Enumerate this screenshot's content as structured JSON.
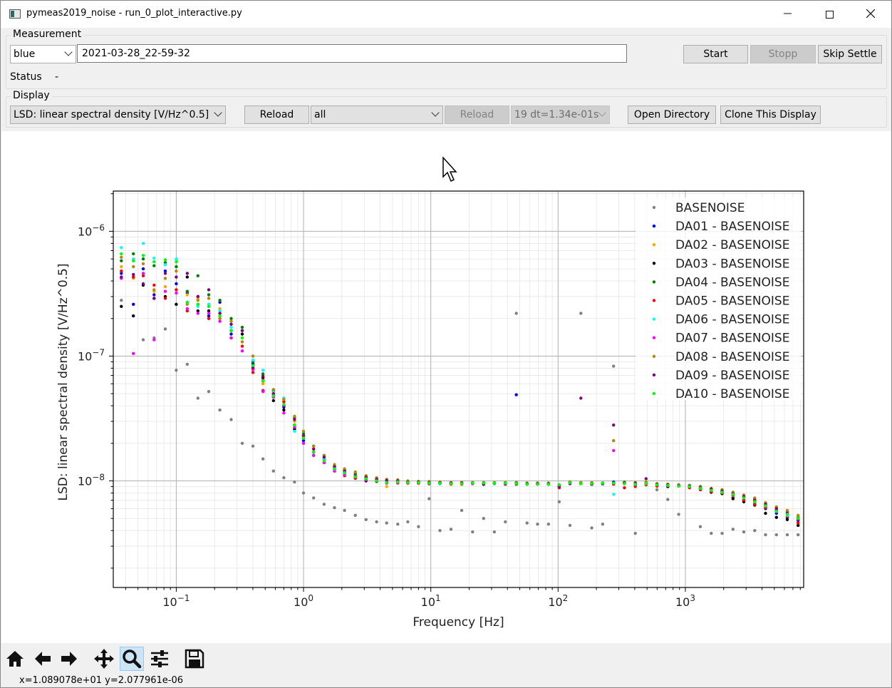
{
  "window": {
    "title": "pymeas2019_noise - run_0_plot_interactive.py"
  },
  "measurement": {
    "group_title": "Measurement",
    "color_select": "blue",
    "directory_value": "2021-03-28_22-59-32",
    "start_label": "Start",
    "stopp_label": "Stopp",
    "skip_settle_label": "Skip Settle",
    "status_label": "Status",
    "status_value": "-"
  },
  "display": {
    "group_title": "Display",
    "mode_select": "LSD: linear spectral density [V/Hz^0.5]",
    "reload_label": "Reload",
    "filter_select": "all",
    "reload2_label": "Reload",
    "dt_select": "19 dt=1.34e-01s",
    "open_directory_label": "Open Directory",
    "clone_label": "Clone This Display"
  },
  "toolbar": {
    "coords": "x=1.089078e+01  y=2.077961e-06",
    "tools": [
      "home-icon",
      "back-arrow-icon",
      "forward-arrow-icon",
      "pan-icon",
      "zoom-icon",
      "configure-subplots-icon",
      "save-icon"
    ]
  },
  "chart_data": {
    "type": "scatter",
    "xscale": "log",
    "yscale": "log",
    "xlabel": "Frequency [Hz]",
    "ylabel": "LSD: linear spectral density [V/Hz^0.5]",
    "xlim": [
      0.032,
      8500
    ],
    "ylim": [
      1.4e-09,
      2.1e-06
    ],
    "grid": true,
    "legend_position": "top-right",
    "x_tick_labels": [
      "10^-1",
      "10^0",
      "10^1",
      "10^2",
      "10^3"
    ],
    "y_tick_labels": [
      "10^-8",
      "10^-7",
      "10^-6"
    ],
    "x": [
      0.037,
      0.046,
      0.055,
      0.067,
      0.082,
      0.1,
      0.122,
      0.148,
      0.18,
      0.22,
      0.27,
      0.33,
      0.4,
      0.48,
      0.58,
      0.7,
      0.85,
      1.0,
      1.2,
      1.45,
      1.75,
      2.1,
      2.55,
      3.1,
      3.75,
      4.5,
      5.5,
      6.6,
      8.0,
      9.7,
      11.8,
      14.4,
      17.5,
      21.3,
      26,
      31.6,
      38.5,
      47,
      57,
      69,
      84,
      102,
      124,
      151,
      184,
      224,
      273,
      332,
      404,
      491,
      598,
      728,
      886,
      1078,
      1312,
      1597,
      1944,
      2366,
      2880,
      3505,
      4266,
      5192,
      6319,
      7690
    ],
    "series": [
      {
        "name": "BASENOISE",
        "color": "#808080",
        "values": [
          2.8e-07,
          null,
          1.35e-07,
          1.4e-07,
          1.65e-07,
          7.7e-08,
          8.6e-08,
          4.6e-08,
          5.2e-08,
          3.7e-08,
          3.1e-08,
          2e-08,
          1.9e-08,
          1.5e-08,
          1.2e-08,
          1.06e-08,
          9.8e-09,
          8e-09,
          7.3e-09,
          6.5e-09,
          6.1e-09,
          5.8e-09,
          5.3e-09,
          4.9e-09,
          4.7e-09,
          4.6e-09,
          4.5e-09,
          4.7e-09,
          4.3e-09,
          7.2e-09,
          4e-09,
          4.1e-09,
          5.8e-09,
          3.9e-09,
          5e-09,
          3.9e-09,
          4.7e-09,
          2.2e-07,
          4.6e-09,
          4.5e-09,
          4.5e-09,
          6.8e-09,
          4.4e-09,
          2.2e-07,
          4.2e-09,
          4.5e-09,
          8.3e-08,
          null,
          3.8e-09,
          null,
          8.5e-09,
          7.1e-09,
          5.4e-09,
          null,
          4.3e-09,
          3.8e-09,
          3.8e-09,
          4.1e-09,
          3.9e-09,
          4e-09,
          3.7e-09,
          3.7e-09,
          3.7e-09,
          3.7e-09
        ]
      },
      {
        "name": "DA01 - BASENOISE",
        "color": "#0000ff",
        "values": [
          4.6e-07,
          2.6e-07,
          5e-07,
          3.1e-07,
          4.8e-07,
          3.8e-07,
          3.2e-07,
          3e-07,
          2.1e-07,
          2.7e-07,
          1.5e-07,
          1.6e-07,
          8.7e-08,
          6.4e-08,
          4.7e-08,
          3.9e-08,
          2.8e-08,
          2.1e-08,
          1.7e-08,
          1.5e-08,
          1.3e-08,
          1.18e-08,
          1.1e-08,
          1.07e-08,
          1.03e-08,
          9.8e-09,
          9.7e-09,
          9.8e-09,
          9.7e-09,
          9.6e-09,
          9.6e-09,
          9.5e-09,
          9.5e-09,
          9.6e-09,
          9.5e-09,
          9.5e-09,
          9.6e-09,
          4.9e-08,
          9.5e-09,
          9.5e-09,
          9.5e-09,
          9.1e-09,
          9.8e-09,
          9.6e-09,
          9.4e-09,
          9.6e-09,
          9.8e-09,
          9.7e-09,
          9.6e-09,
          9.5e-09,
          9.3e-09,
          9.2e-09,
          9.1e-09,
          8.9e-09,
          8.6e-09,
          8.3e-09,
          8e-09,
          7.4e-09,
          6.9e-09,
          6.6e-09,
          6e-09,
          5.5e-09,
          5.1e-09,
          4.8e-09
        ]
      },
      {
        "name": "DA02 - BASENOISE",
        "color": "#ffa500",
        "values": [
          5.2e-07,
          4.2e-07,
          4.6e-07,
          3.3e-07,
          3.6e-07,
          4.3e-07,
          3.1e-07,
          2.9e-07,
          2.6e-07,
          2.4e-07,
          1.4e-07,
          1.3e-07,
          1e-07,
          6e-08,
          5e-08,
          4.4e-08,
          3e-08,
          2.3e-08,
          1.8e-08,
          1.45e-08,
          1.25e-08,
          1.2e-08,
          1.14e-08,
          1.1e-08,
          1.04e-08,
          9e-09,
          9.9e-09,
          9.8e-09,
          9.8e-09,
          9.7e-09,
          9.6e-09,
          9.6e-09,
          9.7e-09,
          9.6e-09,
          9.6e-09,
          9.6e-09,
          9.6e-09,
          9.6e-09,
          9.5e-09,
          9.6e-09,
          9.5e-09,
          9.2e-09,
          9.7e-09,
          9.6e-09,
          9.5e-09,
          9.6e-09,
          2.1e-08,
          9.6e-09,
          9.6e-09,
          9.8e-09,
          9.4e-09,
          9.3e-09,
          9.2e-09,
          9e-09,
          8.7e-09,
          8.3e-09,
          8.1e-09,
          7.6e-09,
          7.2e-09,
          6.7e-09,
          6.2e-09,
          5.7e-09,
          5.3e-09,
          4.9e-09
        ]
      },
      {
        "name": "DA03 - BASENOISE",
        "color": "#000000",
        "values": [
          2.5e-07,
          2.1e-07,
          3.7e-07,
          2.9e-07,
          3e-07,
          2.6e-07,
          4.3e-07,
          2.3e-07,
          2.3e-07,
          2e-07,
          1.6e-07,
          1.5e-07,
          8e-08,
          6.7e-08,
          4.4e-08,
          3.7e-08,
          2.6e-08,
          2.3e-08,
          1.6e-08,
          1.5e-08,
          1.25e-08,
          1.15e-08,
          1.05e-08,
          1e-08,
          9.9e-09,
          9.7e-09,
          9.7e-09,
          9.6e-09,
          9.6e-09,
          9.5e-09,
          9.5e-09,
          9.5e-09,
          9.5e-09,
          9.5e-09,
          9.4e-09,
          9.5e-09,
          9.4e-09,
          9.4e-09,
          9.4e-09,
          9.4e-09,
          9.4e-09,
          9e-09,
          9.5e-09,
          9.5e-09,
          9.4e-09,
          9.6e-09,
          9.5e-09,
          9.5e-09,
          9.3e-09,
          9.4e-09,
          9.1e-09,
          9e-09,
          9.1e-09,
          8.9e-09,
          8.6e-09,
          8.1e-09,
          7.9e-09,
          7.2e-09,
          6.8e-09,
          6.4e-09,
          5.5e-09,
          5.1e-09,
          4.9e-09,
          4.4e-09
        ]
      },
      {
        "name": "DA04 - BASENOISE",
        "color": "#008000",
        "values": [
          5.8e-07,
          6.6e-07,
          6e-07,
          5.3e-07,
          5.6e-07,
          5.2e-07,
          3.3e-07,
          4.4e-07,
          3.1e-07,
          2.8e-07,
          2e-07,
          1.7e-07,
          9e-08,
          7.2e-08,
          5.3e-08,
          4.6e-08,
          3.2e-08,
          2.4e-08,
          1.9e-08,
          1.6e-08,
          1.3e-08,
          1.22e-08,
          1.14e-08,
          1.08e-08,
          1.05e-08,
          1e-08,
          1e-08,
          9.9e-09,
          9.9e-09,
          9.8e-09,
          9.7e-09,
          9.7e-09,
          9.7e-09,
          9.7e-09,
          9.7e-09,
          9.6e-09,
          9.7e-09,
          9.7e-09,
          9.6e-09,
          9.6e-09,
          9.6e-09,
          9.3e-09,
          9.8e-09,
          9.7e-09,
          9.6e-09,
          9.6e-09,
          9.6e-09,
          9.8e-09,
          9.6e-09,
          9.7e-09,
          9.5e-09,
          9.4e-09,
          9.3e-09,
          9.2e-09,
          9e-09,
          8.7e-09,
          8.5e-09,
          8.1e-09,
          7.7e-09,
          7.2e-09,
          6.6e-09,
          6.1e-09,
          5.6e-09,
          5.1e-09
        ]
      },
      {
        "name": "DA05 - BASENOISE",
        "color": "#ff0000",
        "values": [
          4.8e-07,
          4.3e-07,
          4.4e-07,
          3.7e-07,
          2.9e-07,
          3.4e-07,
          2.3e-07,
          2.6e-07,
          2e-07,
          2.2e-07,
          1.4e-07,
          1.2e-07,
          7.4e-08,
          5.3e-08,
          4.9e-08,
          4.3e-08,
          2.8e-08,
          2.2e-08,
          1.7e-08,
          1.4e-08,
          1.2e-08,
          1.1e-08,
          1.05e-08,
          1.03e-08,
          1.02e-08,
          9.6e-09,
          9.6e-09,
          9.6e-09,
          9.6e-09,
          9.6e-09,
          9.5e-09,
          9.4e-09,
          9.4e-09,
          9.6e-09,
          9.6e-09,
          9.5e-09,
          9.5e-09,
          9.5e-09,
          9.4e-09,
          9.4e-09,
          9.4e-09,
          8.8e-09,
          9.8e-09,
          9.5e-09,
          9.5e-09,
          9.5e-09,
          9.4e-09,
          8.8e-09,
          9e-09,
          9.3e-09,
          9.1e-09,
          9.2e-09,
          9.1e-09,
          8.8e-09,
          8.5e-09,
          8.2e-09,
          8e-09,
          7.7e-09,
          7e-09,
          6.5e-09,
          6.1e-09,
          5.7e-09,
          5.2e-09,
          4.6e-09
        ]
      },
      {
        "name": "DA06 - BASENOISE",
        "color": "#00ffff",
        "values": [
          7.4e-07,
          6e-07,
          8e-07,
          6.1e-07,
          5.4e-07,
          6e-07,
          2.7e-07,
          2.5e-07,
          2.6e-07,
          2.3e-07,
          1.7e-07,
          1.6e-07,
          9.3e-08,
          7.7e-08,
          5.1e-08,
          4.6e-08,
          2.5e-08,
          2e-08,
          1.6e-08,
          1.5e-08,
          1.3e-08,
          1.2e-08,
          1.1e-08,
          1.07e-08,
          1.04e-08,
          1e-08,
          1e-08,
          9.8e-09,
          9.8e-09,
          9.6e-09,
          9.5e-09,
          9.6e-09,
          9.6e-09,
          9.5e-09,
          9.6e-09,
          9.5e-09,
          9.5e-09,
          9.5e-09,
          9.4e-09,
          9.5e-09,
          9.5e-09,
          9e-09,
          9.6e-09,
          9.6e-09,
          9.6e-09,
          9.4e-09,
          7.8e-09,
          9.5e-09,
          9.4e-09,
          9.5e-09,
          9.4e-09,
          9.3e-09,
          9.1e-09,
          9e-09,
          8.8e-09,
          8.5e-09,
          8.3e-09,
          7.9e-09,
          7.4e-09,
          6.9e-09,
          6.4e-09,
          5.9e-09,
          5.3e-09,
          4.9e-09
        ]
      },
      {
        "name": "DA07 - BASENOISE",
        "color": "#ff00ff",
        "values": [
          4.2e-07,
          1.05e-07,
          4.6e-07,
          1.35e-07,
          3.3e-07,
          3.2e-07,
          2.4e-07,
          2.2e-07,
          2.2e-07,
          1.9e-07,
          1.4e-07,
          1.1e-07,
          7.8e-08,
          5.2e-08,
          4.7e-08,
          3.5e-08,
          2.7e-08,
          2e-08,
          1.6e-08,
          1.4e-08,
          1.2e-08,
          1.12e-08,
          1.08e-08,
          1.02e-08,
          1e-08,
          9.7e-09,
          9.7e-09,
          9.7e-09,
          9.7e-09,
          9.6e-09,
          9.6e-09,
          9.6e-09,
          9.6e-09,
          9.5e-09,
          9.6e-09,
          9.6e-09,
          9.5e-09,
          9.5e-09,
          9.4e-09,
          9.4e-09,
          9.5e-09,
          9.1e-09,
          9.6e-09,
          9.6e-09,
          9.6e-09,
          9.5e-09,
          1.75e-08,
          9.6e-09,
          9.5e-09,
          9.5e-09,
          9.4e-09,
          9.3e-09,
          9.2e-09,
          9.1e-09,
          8.8e-09,
          8.5e-09,
          8.2e-09,
          7.8e-09,
          7.4e-09,
          6.9e-09,
          6.3e-09,
          5.8e-09,
          5.7e-09,
          5e-09
        ]
      },
      {
        "name": "DA08 - BASENOISE",
        "color": "#b8860b",
        "values": [
          6.2e-07,
          5.2e-07,
          5.5e-07,
          3.4e-07,
          4.2e-07,
          4.8e-07,
          2.6e-07,
          2.8e-07,
          2.9e-07,
          2e-07,
          1.9e-07,
          1.3e-07,
          1e-07,
          6.4e-08,
          5.4e-08,
          4.5e-08,
          3.3e-08,
          2.5e-08,
          1.9e-08,
          1.6e-08,
          1.35e-08,
          1.25e-08,
          1.18e-08,
          1.1e-08,
          1.06e-08,
          1.03e-08,
          1.02e-08,
          1e-08,
          9.9e-09,
          9.9e-09,
          9.8e-09,
          9.7e-09,
          9.7e-09,
          9.7e-09,
          9.7e-09,
          9.7e-09,
          9.7e-09,
          9.6e-09,
          9.6e-09,
          9.6e-09,
          9.6e-09,
          9.2e-09,
          9.8e-09,
          9.7e-09,
          9.7e-09,
          9.6e-09,
          2.1e-08,
          9.7e-09,
          9.7e-09,
          9.8e-09,
          9.5e-09,
          9.4e-09,
          9.3e-09,
          9.2e-09,
          8.9e-09,
          8.7e-09,
          8.5e-09,
          8.1e-09,
          7.7e-09,
          7.3e-09,
          6.7e-09,
          6.2e-09,
          5.8e-09,
          5.3e-09
        ]
      },
      {
        "name": "DA09 - BASENOISE",
        "color": "#800080",
        "values": [
          4.3e-07,
          4.5e-07,
          3.8e-07,
          2.9e-07,
          4.6e-07,
          4.3e-07,
          4.6e-07,
          3e-07,
          3.4e-07,
          2.2e-07,
          1.8e-07,
          1.6e-07,
          8.1e-08,
          6.9e-08,
          5e-08,
          4e-08,
          3.1e-08,
          2.3e-08,
          1.8e-08,
          1.55e-08,
          1.3e-08,
          1.2e-08,
          1.1e-08,
          1.07e-08,
          1.03e-08,
          1.01e-08,
          1e-08,
          9.8e-09,
          9.8e-09,
          9.7e-09,
          9.7e-09,
          9.6e-09,
          9.6e-09,
          9.6e-09,
          9.6e-09,
          9.6e-09,
          9.6e-09,
          9.5e-09,
          9.5e-09,
          9.5e-09,
          9.5e-09,
          9e-09,
          9.7e-09,
          4.6e-08,
          9.5e-09,
          9.5e-09,
          2.8e-08,
          9.6e-09,
          9.6e-09,
          1.04e-08,
          9.4e-09,
          9.3e-09,
          9.2e-09,
          9.1e-09,
          8.8e-09,
          8.6e-09,
          8.3e-09,
          7.9e-09,
          7.5e-09,
          7e-09,
          6.5e-09,
          6e-09,
          5.5e-09,
          4.9e-09
        ]
      },
      {
        "name": "DA10 - BASENOISE",
        "color": "#00ff00",
        "values": [
          6.6e-07,
          5.8e-07,
          6.4e-07,
          5.7e-07,
          5.9e-07,
          5.7e-07,
          2.7e-07,
          2.6e-07,
          2.5e-07,
          2.1e-07,
          1.6e-07,
          1.4e-07,
          8.4e-08,
          6.3e-08,
          4.8e-08,
          4.1e-08,
          2.8e-08,
          2.2e-08,
          1.7e-08,
          1.45e-08,
          1.25e-08,
          1.16e-08,
          1.08e-08,
          1.04e-08,
          1e-08,
          9.7e-09,
          9.8e-09,
          9.7e-09,
          9.7e-09,
          9.6e-09,
          9.6e-09,
          9.5e-09,
          9.5e-09,
          9.6e-09,
          9.6e-09,
          9.6e-09,
          9.6e-09,
          9.5e-09,
          9.4e-09,
          9.4e-09,
          9.4e-09,
          9.3e-09,
          9.7e-09,
          9.5e-09,
          9.5e-09,
          9.6e-09,
          9.6e-09,
          9.5e-09,
          9.4e-09,
          9.5e-09,
          9.3e-09,
          9.2e-09,
          9.1e-09,
          9e-09,
          8.7e-09,
          8.4e-09,
          8.1e-09,
          7.8e-09,
          7.3e-09,
          6.8e-09,
          6.3e-09,
          5.7e-09,
          5.4e-09,
          5e-09
        ]
      }
    ]
  }
}
